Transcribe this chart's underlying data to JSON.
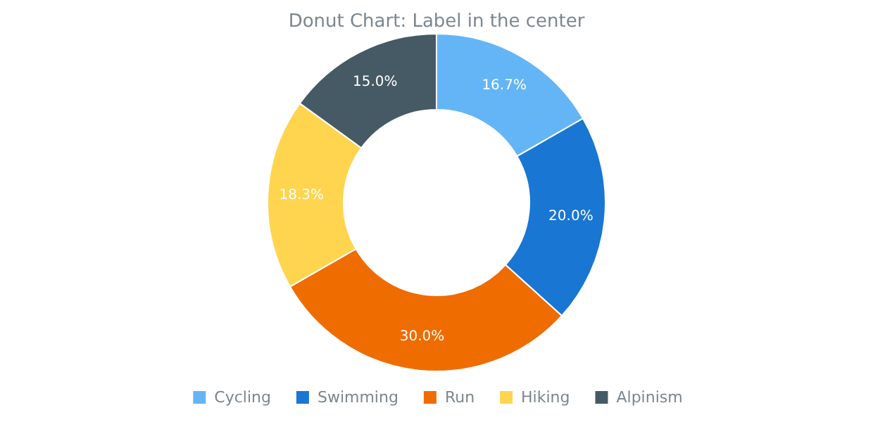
{
  "chart_data": {
    "type": "donut",
    "title": "Donut Chart: Label in the center",
    "categories": [
      "Cycling",
      "Swimming",
      "Run",
      "Hiking",
      "Alpinism"
    ],
    "values": [
      16.7,
      20.0,
      30.0,
      18.3,
      15.0
    ],
    "colors": [
      "#64b5f6",
      "#1976d2",
      "#ef6c00",
      "#ffd54f",
      "#455a64"
    ],
    "value_labels": [
      "16.7%",
      "20.0%",
      "30.0%",
      "18.3%",
      "15.0%"
    ],
    "legend": "bottom"
  }
}
